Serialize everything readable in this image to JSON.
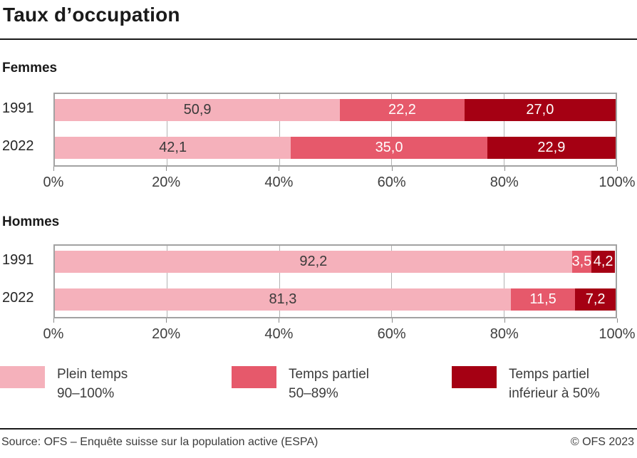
{
  "title": "Taux d’occupation",
  "axis_ticks": [
    "0%",
    "20%",
    "40%",
    "60%",
    "80%",
    "100%"
  ],
  "series_colors": [
    "#f5b1bb",
    "#e6596b",
    "#a50013"
  ],
  "chart_data": [
    {
      "type": "bar",
      "title": "Femmes",
      "orientation": "horizontal",
      "stacked": true,
      "categories": [
        "1991",
        "2022"
      ],
      "series": [
        {
          "name": "Plein temps 90–100%",
          "values": [
            50.9,
            42.1
          ]
        },
        {
          "name": "Temps partiel 50–89%",
          "values": [
            22.2,
            35.0
          ]
        },
        {
          "name": "Temps partiel inférieur à 50%",
          "values": [
            27.0,
            22.9
          ]
        }
      ],
      "value_labels": [
        [
          "50,9",
          "22,2",
          "27,0"
        ],
        [
          "42,1",
          "35,0",
          "22,9"
        ]
      ],
      "xlim": [
        0,
        100
      ],
      "grid": true,
      "xlabel": "",
      "ylabel": ""
    },
    {
      "type": "bar",
      "title": "Hommes",
      "orientation": "horizontal",
      "stacked": true,
      "categories": [
        "1991",
        "2022"
      ],
      "series": [
        {
          "name": "Plein temps 90–100%",
          "values": [
            92.2,
            81.3
          ]
        },
        {
          "name": "Temps partiel 50–89%",
          "values": [
            3.5,
            11.5
          ]
        },
        {
          "name": "Temps partiel inférieur à 50%",
          "values": [
            4.2,
            7.2
          ]
        }
      ],
      "value_labels": [
        [
          "92,2",
          "3,5",
          "4,2"
        ],
        [
          "81,3",
          "11,5",
          "7,2"
        ]
      ],
      "xlim": [
        0,
        100
      ],
      "grid": true,
      "xlabel": "",
      "ylabel": ""
    }
  ],
  "legend": [
    {
      "line1": "Plein temps",
      "line2": "90–100%",
      "color": "#f5b1bb"
    },
    {
      "line1": "Temps partiel",
      "line2": "50–89%",
      "color": "#e6596b"
    },
    {
      "line1": "Temps partiel",
      "line2": "inférieur à 50%",
      "color": "#a50013"
    }
  ],
  "footer": {
    "source": "Source: OFS – Enquête suisse sur la population active (ESPA)",
    "copyright": "© OFS 2023"
  }
}
